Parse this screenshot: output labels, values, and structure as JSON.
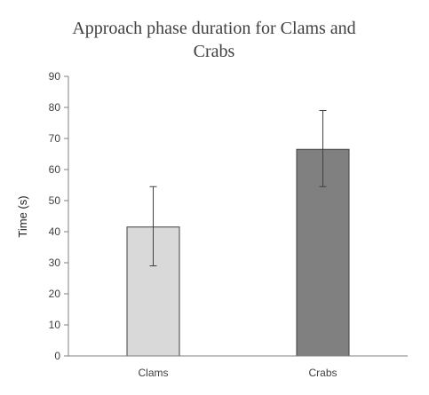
{
  "chart_data": {
    "type": "bar",
    "title_lines": [
      "Approach phase duration for Clams and",
      "Crabs"
    ],
    "xlabel": "",
    "ylabel": "Time (s)",
    "ylim": [
      0,
      90
    ],
    "yticks": [
      0,
      10,
      20,
      30,
      40,
      50,
      60,
      70,
      80,
      90
    ],
    "categories": [
      "Clams",
      "Crabs"
    ],
    "values": [
      41.5,
      66.5
    ],
    "error_low": [
      29,
      54.5
    ],
    "error_high": [
      54.5,
      79
    ],
    "bar_colors": [
      "#d9d9d9",
      "#808080"
    ],
    "bar_edge_color": "#404040",
    "grid": false,
    "legend": "none"
  }
}
